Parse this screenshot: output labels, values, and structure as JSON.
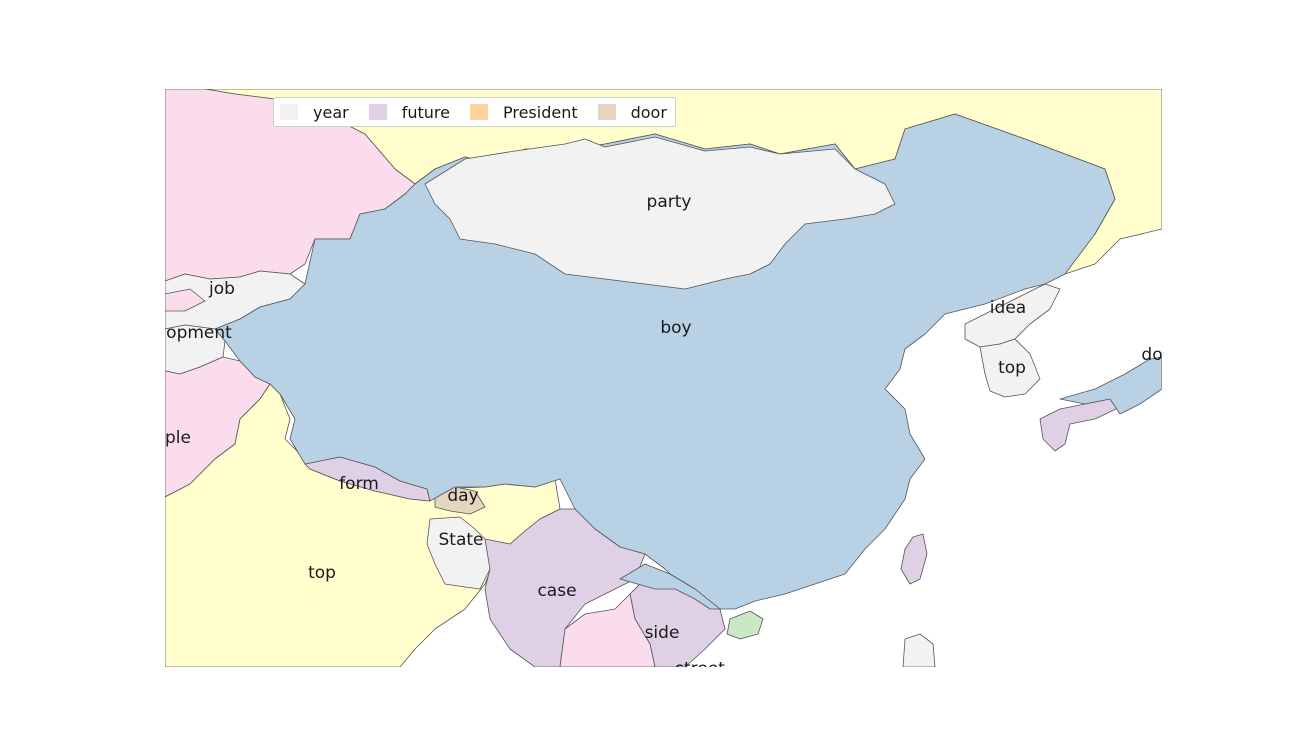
{
  "colors": {
    "pink": "#fadcec",
    "yellow": "#fffecc",
    "gray": "#f2f2f2",
    "blue": "#b8d1e5",
    "lavender": "#e0d0e6",
    "green": "#cbe8c5",
    "tan": "#e5d7bf",
    "orange": "#fdd49f",
    "border": "#555555"
  },
  "legend": {
    "items": [
      {
        "label": "year",
        "color": "#f2f2f2"
      },
      {
        "label": "future",
        "color": "#e0d0e6"
      },
      {
        "label": "President",
        "color": "#fdd49f"
      },
      {
        "label": "door",
        "color": "#e5d7bf"
      }
    ]
  },
  "labels": {
    "party": "party",
    "job": "job",
    "opment": "opment",
    "boy": "boy",
    "idea": "idea",
    "top_korea": "top",
    "do": "do",
    "ple": "ple",
    "form": "form",
    "day": "day",
    "state": "State",
    "top_india": "top",
    "case": "case",
    "side": "side",
    "street": "street"
  }
}
